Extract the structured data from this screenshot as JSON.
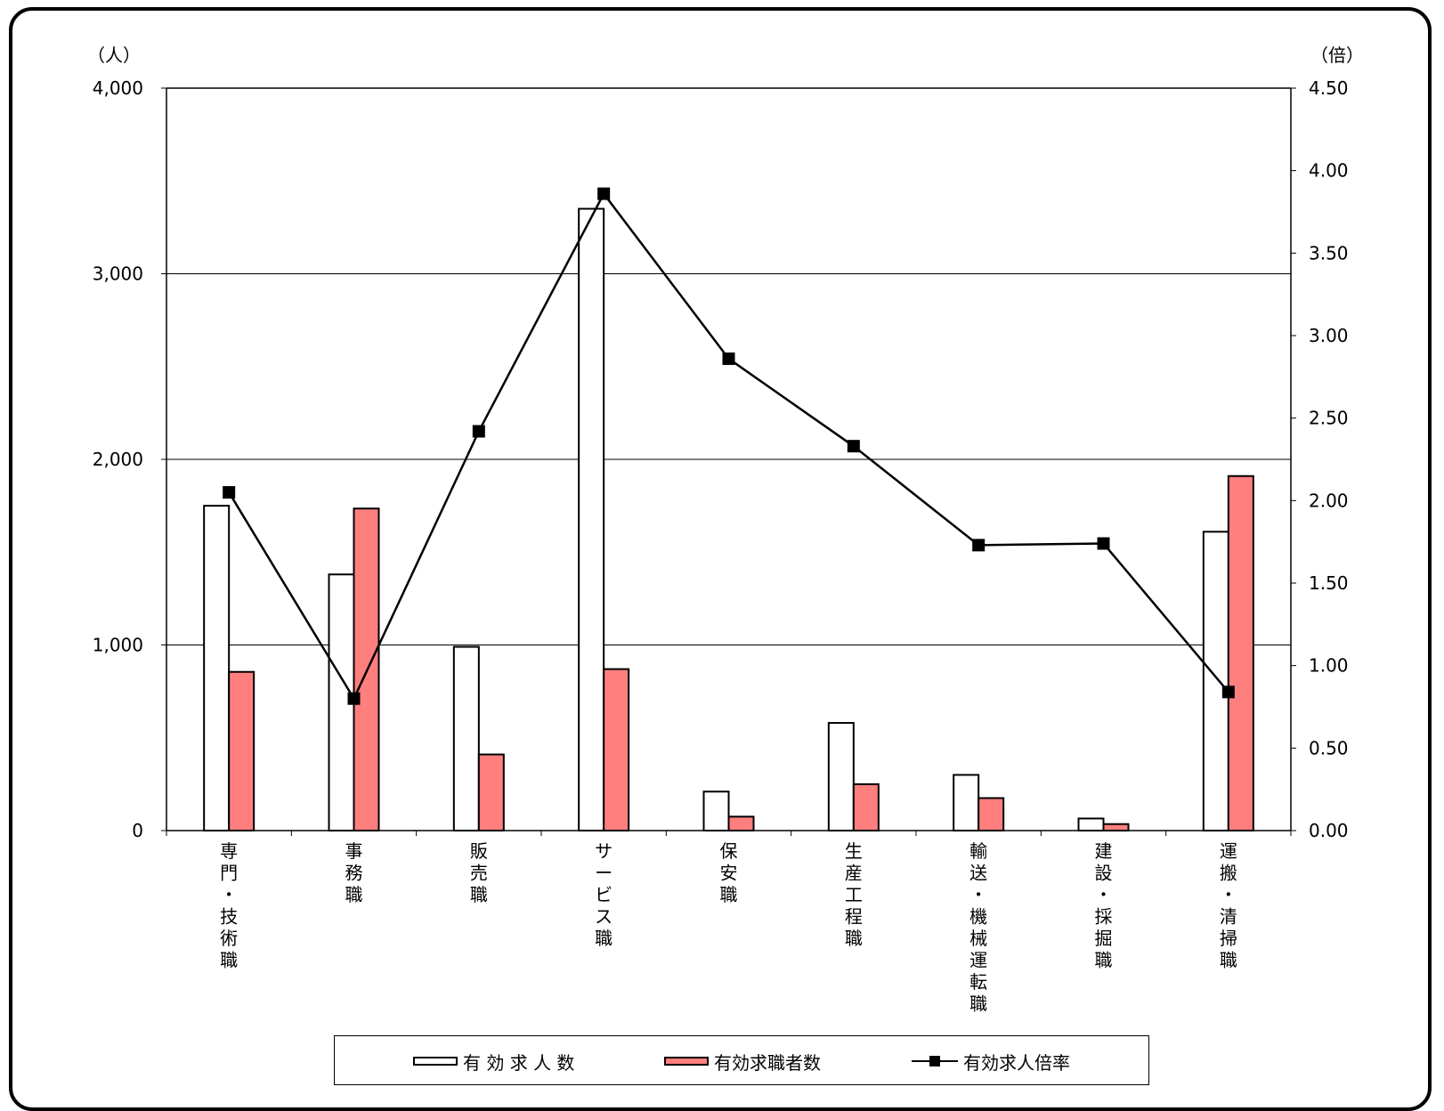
{
  "units": {
    "left": "（人）",
    "right": "（倍）"
  },
  "colors": {
    "openings_fill": "#ffffff",
    "seekers_fill": "#ff7f7f",
    "ratio_line": "#000000",
    "axis": "#000000"
  },
  "chart_data": {
    "type": "bar",
    "title": "",
    "categories": [
      "専門・技術職",
      "事務職",
      "販売職",
      "サービス職",
      "保安職",
      "生産工程職",
      "輸送・機械運転職",
      "建設・採掘職",
      "運搬・清掃職"
    ],
    "series": [
      {
        "name": "有 効 求 人 数",
        "axis": "left",
        "values": [
          1750,
          1380,
          990,
          3350,
          210,
          580,
          300,
          65,
          1610
        ]
      },
      {
        "name": "有効求職者数",
        "axis": "left",
        "values": [
          855,
          1735,
          410,
          870,
          75,
          250,
          175,
          35,
          1910
        ]
      },
      {
        "name": "有効求人倍率",
        "axis": "right",
        "type": "line",
        "marker": "square",
        "values": [
          2.05,
          0.8,
          2.42,
          3.86,
          2.86,
          2.33,
          1.73,
          1.74,
          0.84
        ]
      }
    ],
    "y_left": {
      "ylim": [
        0,
        4000
      ],
      "ticks": [
        0,
        1000,
        2000,
        3000,
        4000
      ],
      "tick_labels": [
        "0",
        "1,000",
        "2,000",
        "3,000",
        "4,000"
      ]
    },
    "y_right": {
      "ylim": [
        0,
        4.5
      ],
      "ticks": [
        0,
        0.5,
        1,
        1.5,
        2,
        2.5,
        3,
        3.5,
        4,
        4.5
      ],
      "tick_labels": [
        "0.00",
        "0.50",
        "1.00",
        "1.50",
        "2.00",
        "2.50",
        "3.00",
        "3.50",
        "4.00",
        "4.50"
      ]
    },
    "grid": true,
    "legend": "bottom"
  }
}
